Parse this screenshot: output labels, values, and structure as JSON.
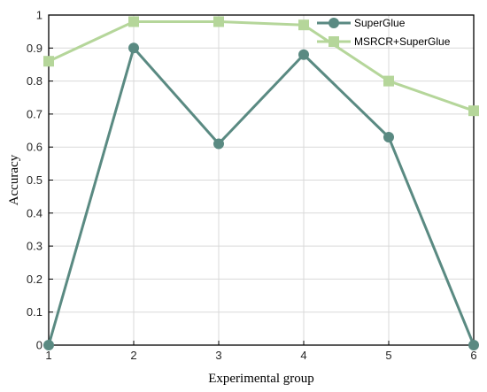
{
  "chart_data": {
    "type": "line",
    "title": "",
    "xlabel": "Experimental group",
    "ylabel": "Accuracy",
    "x": [
      1,
      2,
      3,
      4,
      5,
      6
    ],
    "xticks": [
      "1",
      "2",
      "3",
      "4",
      "5",
      "6"
    ],
    "yticks": [
      "0",
      "0.1",
      "0.2",
      "0.3",
      "0.4",
      "0.5",
      "0.6",
      "0.7",
      "0.8",
      "0.9",
      "1"
    ],
    "xlim": [
      1,
      6
    ],
    "ylim": [
      0,
      1
    ],
    "grid": true,
    "legend_position": "top-right",
    "series": [
      {
        "name": "SuperGlue",
        "values": [
          0.0,
          0.9,
          0.61,
          0.88,
          0.63,
          0.0
        ],
        "color": "#5a8a82",
        "marker": "circle"
      },
      {
        "name": "MSRCR+SuperGlue",
        "values": [
          0.86,
          0.98,
          0.98,
          0.97,
          0.8,
          0.71
        ],
        "color": "#b5d69a",
        "marker": "square"
      }
    ]
  }
}
